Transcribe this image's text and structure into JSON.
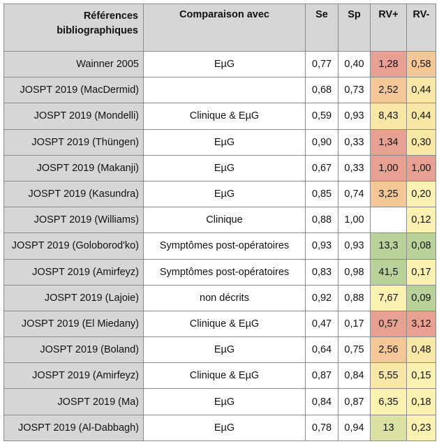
{
  "headers": {
    "ref_line1": "Références",
    "ref_line2": "bibliographiques",
    "comp": "Comparaison avec",
    "se": "Se",
    "sp": "Sp",
    "rvp": "RV+",
    "rvm": "RV-"
  },
  "rows": [
    {
      "ref": "Wainner 2005",
      "comp": "EµG",
      "se": "0,77",
      "sp": "0,40",
      "rvp": "1,28",
      "rvm": "0,58",
      "rvp_color": "red",
      "rvm_color": "orange"
    },
    {
      "ref": "JOSPT 2019 (MacDermid)",
      "comp": "",
      "se": "0,68",
      "sp": "0,73",
      "rvp": "2,52",
      "rvm": "0,44",
      "rvp_color": "orange",
      "rvm_color": "yellow"
    },
    {
      "ref": "JOSPT 2019 (Mondelli)",
      "comp": "Clinique & EµG",
      "se": "0,59",
      "sp": "0,93",
      "rvp": "8,43",
      "rvm": "0,44",
      "rvp_color": "yellow",
      "rvm_color": "yellow"
    },
    {
      "ref": "JOSPT 2019 (Thüngen)",
      "comp": "EµG",
      "se": "0,90",
      "sp": "0,33",
      "rvp": "1,34",
      "rvm": "0,30",
      "rvp_color": "red",
      "rvm_color": "yellow"
    },
    {
      "ref": "JOSPT 2019 (Makanji)",
      "comp": "EµG",
      "se": "0,67",
      "sp": "0,33",
      "rvp": "1,00",
      "rvm": "1,00",
      "rvp_color": "red",
      "rvm_color": "red"
    },
    {
      "ref": "JOSPT 2019 (Kasundra)",
      "comp": "EµG",
      "se": "0,85",
      "sp": "0,74",
      "rvp": "3,25",
      "rvm": "0,20",
      "rvp_color": "orange",
      "rvm_color": "lightyellow"
    },
    {
      "ref": "JOSPT 2019 (Williams)",
      "comp": "Clinique",
      "se": "0,88",
      "sp": "1,00",
      "rvp": "",
      "rvm": "0,12",
      "rvp_color": "none",
      "rvm_color": "lightyellow"
    },
    {
      "ref": "JOSPT 2019 (Goloborod'ko)",
      "comp": "Symptômes post-opératoires",
      "se": "0,93",
      "sp": "0,93",
      "rvp": "13,3",
      "rvm": "0,08",
      "rvp_color": "green",
      "rvm_color": "green"
    },
    {
      "ref": "JOSPT 2019 (Amirfeyz)",
      "comp": "Symptômes post-opératoires",
      "se": "0,83",
      "sp": "0,98",
      "rvp": "41,5",
      "rvm": "0,17",
      "rvp_color": "green",
      "rvm_color": "lightyellow"
    },
    {
      "ref": "JOSPT 2019 (Lajoie)",
      "comp": "non décrits",
      "se": "0,92",
      "sp": "0,88",
      "rvp": "7,67",
      "rvm": "0,09",
      "rvp_color": "lightyellow",
      "rvm_color": "green"
    },
    {
      "ref": "JOSPT 2019 (El Miedany)",
      "comp": "Clinique & EµG",
      "se": "0,47",
      "sp": "0,17",
      "rvp": "0,57",
      "rvm": "3,12",
      "rvp_color": "red",
      "rvm_color": "red"
    },
    {
      "ref": "JOSPT 2019 (Boland)",
      "comp": "EµG",
      "se": "0,64",
      "sp": "0,75",
      "rvp": "2,56",
      "rvm": "0,48",
      "rvp_color": "orange",
      "rvm_color": "yellow"
    },
    {
      "ref": "JOSPT 2019 (Amirfeyz)",
      "comp": "Clinique & EµG",
      "se": "0,87",
      "sp": "0,84",
      "rvp": "5,55",
      "rvm": "0,15",
      "rvp_color": "yellow",
      "rvm_color": "lightyellow"
    },
    {
      "ref": "JOSPT 2019 (Ma)",
      "comp": "EµG",
      "se": "0,84",
      "sp": "0,87",
      "rvp": "6,35",
      "rvm": "0,18",
      "rvp_color": "lightyellow",
      "rvm_color": "lightyellow"
    },
    {
      "ref": "JOSPT 2019 (Al-Dabbagh)",
      "comp": "EµG",
      "se": "0,78",
      "sp": "0,94",
      "rvp": "13",
      "rvm": "0,23",
      "rvp_color": "lightgreen",
      "rvm_color": "lightyellow"
    }
  ]
}
